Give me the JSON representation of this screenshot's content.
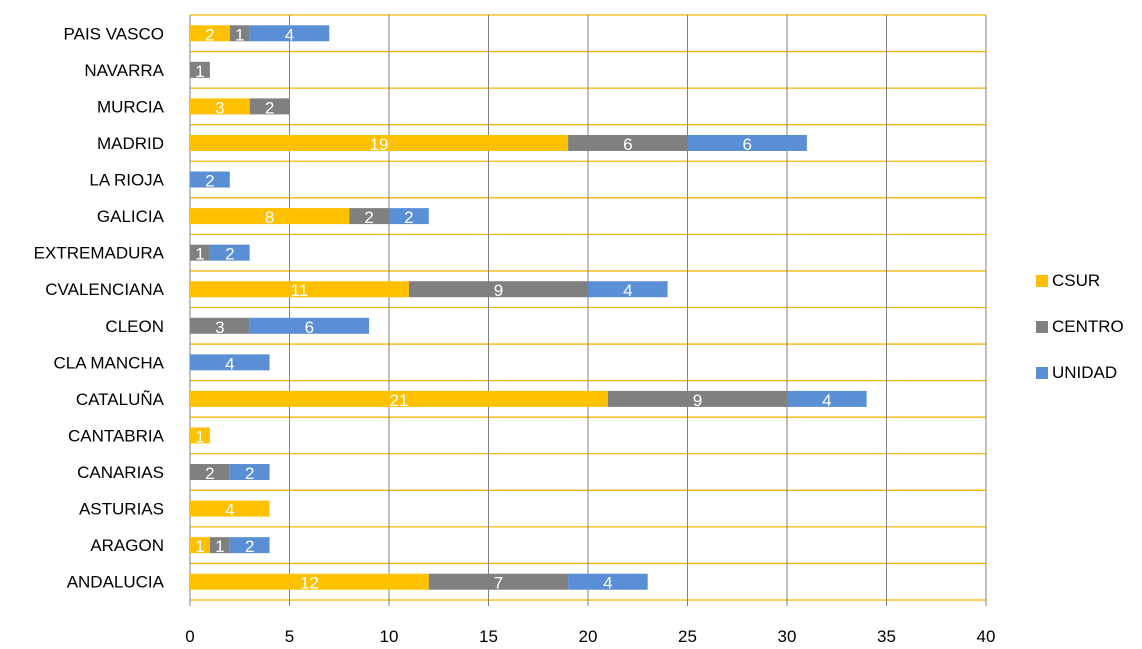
{
  "chart_data": {
    "type": "bar",
    "orientation": "horizontal",
    "stacked": true,
    "categories": [
      "ANDALUCIA",
      "ARAGON",
      "ASTURIAS",
      "CANARIAS",
      "CANTABRIA",
      "CATALUÑA",
      "CLA MANCHA",
      "CLEON",
      "CVALENCIANA",
      "EXTREMADURA",
      "GALICIA",
      "LA RIOJA",
      "MADRID",
      "MURCIA",
      "NAVARRA",
      "PAIS VASCO"
    ],
    "series": [
      {
        "name": "CSUR",
        "color": "#FFC000",
        "values": [
          12,
          1,
          4,
          0,
          1,
          21,
          0,
          0,
          11,
          0,
          8,
          0,
          19,
          3,
          0,
          2
        ]
      },
      {
        "name": "CENTRO",
        "color": "#808080",
        "values": [
          7,
          1,
          0,
          2,
          0,
          9,
          0,
          3,
          9,
          1,
          2,
          0,
          6,
          2,
          1,
          1
        ]
      },
      {
        "name": "UNIDAD",
        "color": "#5B8FD5",
        "values": [
          4,
          2,
          0,
          2,
          0,
          4,
          4,
          6,
          4,
          2,
          2,
          2,
          6,
          0,
          0,
          4
        ]
      }
    ],
    "xlim": [
      0,
      40
    ],
    "xticks": [
      "0",
      "5",
      "10",
      "15",
      "20",
      "25",
      "30",
      "35",
      "40"
    ],
    "gridline_color": "#F2B705",
    "grid": true,
    "legend_position": "right"
  }
}
